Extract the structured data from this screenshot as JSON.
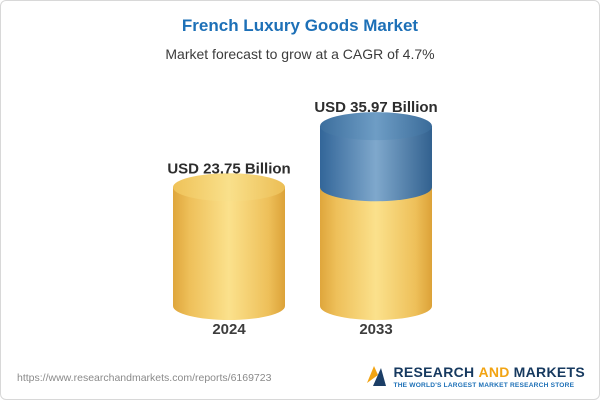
{
  "header": {
    "title": "French Luxury Goods Market",
    "subtitle": "Market forecast to grow at a CAGR of 4.7%"
  },
  "chart_data": {
    "type": "bar",
    "variant": "3d-cylinder",
    "categories": [
      "2024",
      "2033"
    ],
    "values": [
      23.75,
      35.97
    ],
    "value_labels": [
      "USD 23.75 Billion",
      "USD 35.97 Billion"
    ],
    "unit": "USD Billion",
    "title": "French Luxury Goods Market",
    "subtitle": "Market forecast to grow at a CAGR of 4.7%",
    "cagr_pct": 4.7,
    "ylim": [
      0,
      40
    ],
    "grid": false,
    "axes_visible": false,
    "legend_position": "none",
    "colors": {
      "base_segment": "#F6C95F",
      "growth_segment": "#41779F"
    },
    "growth_segment": {
      "category": "2033",
      "from_value": 23.75,
      "to_value": 35.97
    }
  },
  "footer": {
    "url": "https://www.researchandmarkets.com/reports/6169723",
    "logo": {
      "word1": "RESEARCH",
      "word2": "AND",
      "word3": "MARKETS",
      "tagline": "THE WORLD'S LARGEST MARKET RESEARCH STORE"
    }
  }
}
